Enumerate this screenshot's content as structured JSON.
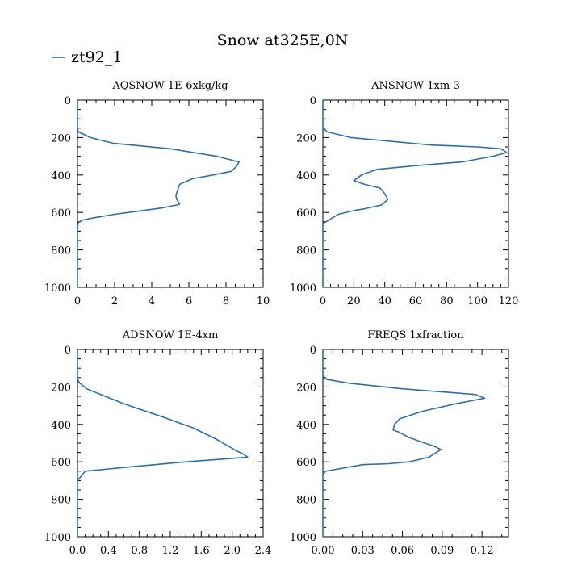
{
  "title": "Snow at325E,0N",
  "legend": {
    "label": "zt92_1",
    "color": "#2a6fb0"
  },
  "chart_data": [
    {
      "type": "line",
      "title": "AQSNOW  1E-6xkg/kg",
      "xlim": [
        0,
        10
      ],
      "ylim": [
        1000,
        0
      ],
      "xticks": [
        "0",
        "2",
        "4",
        "6",
        "8",
        "10"
      ],
      "yticks": [
        "0",
        "200",
        "400",
        "600",
        "800",
        "1000"
      ],
      "series": [
        {
          "name": "zt92_1",
          "x": [
            0,
            0,
            0.02,
            0.1,
            0.3,
            0.8,
            2.0,
            3.5,
            4.6,
            5.1,
            5.45,
            5.5,
            5.45,
            5.4,
            5.35,
            5.3,
            5.4,
            5.5,
            6.2,
            7.3,
            8.3,
            8.6,
            8.7,
            7.5,
            5.0,
            1.9,
            0.7,
            0.05,
            0,
            0
          ],
          "y": [
            1000,
            700,
            660,
            650,
            640,
            630,
            610,
            590,
            575,
            565,
            558,
            555,
            548,
            540,
            530,
            510,
            480,
            450,
            420,
            400,
            380,
            350,
            330,
            300,
            260,
            230,
            200,
            170,
            150,
            0
          ]
        }
      ]
    },
    {
      "type": "line",
      "title": "ANSNOW  1xm-3",
      "xlim": [
        0,
        120
      ],
      "ylim": [
        1000,
        0
      ],
      "xticks": [
        "0",
        "20",
        "40",
        "60",
        "80",
        "100",
        "120"
      ],
      "yticks": [
        "0",
        "200",
        "400",
        "600",
        "800",
        "1000"
      ],
      "series": [
        {
          "name": "zt92_1",
          "x": [
            0,
            0,
            2,
            10,
            20,
            27,
            38,
            42,
            40,
            37,
            27,
            20,
            25,
            35,
            60,
            90,
            110,
            119,
            115,
            100,
            70,
            18,
            3,
            0,
            0
          ],
          "y": [
            1000,
            660,
            650,
            610,
            590,
            580,
            560,
            530,
            500,
            470,
            450,
            430,
            400,
            370,
            350,
            330,
            300,
            280,
            260,
            250,
            240,
            200,
            170,
            150,
            0
          ]
        }
      ]
    },
    {
      "type": "line",
      "title": "ADSNOW  1E-4xm",
      "xlim": [
        0,
        2.4
      ],
      "ylim": [
        1000,
        0
      ],
      "xticks": [
        "0.0",
        "0.4",
        "0.8",
        "1.2",
        "1.6",
        "2.0",
        "2.4"
      ],
      "yticks": [
        "0",
        "200",
        "400",
        "600",
        "800",
        "1000"
      ],
      "series": [
        {
          "name": "zt92_1",
          "x": [
            0,
            0,
            0.02,
            0.1,
            0.6,
            1.4,
            2.2,
            2.15,
            2.05,
            1.8,
            1.5,
            1.1,
            0.6,
            0.3,
            0.12,
            0.03,
            0,
            0
          ],
          "y": [
            1000,
            700,
            690,
            650,
            630,
            600,
            575,
            560,
            540,
            480,
            420,
            360,
            290,
            240,
            210,
            180,
            160,
            0
          ]
        }
      ]
    },
    {
      "type": "line",
      "title": "FREQS  1xfraction",
      "xlim": [
        0,
        0.14
      ],
      "ylim": [
        1000,
        0
      ],
      "xticks": [
        "0.00",
        "0.03",
        "0.06",
        "0.09",
        "0.12"
      ],
      "yticks": [
        "0",
        "200",
        "400",
        "600",
        "800",
        "1000"
      ],
      "series": [
        {
          "name": "zt92_1",
          "x": [
            0,
            0,
            0.002,
            0.01,
            0.03,
            0.05,
            0.065,
            0.08,
            0.089,
            0.085,
            0.065,
            0.057,
            0.053,
            0.054,
            0.058,
            0.075,
            0.1,
            0.115,
            0.122,
            0.115,
            0.06,
            0.02,
            0.003,
            0,
            0
          ],
          "y": [
            1000,
            670,
            650,
            640,
            615,
            610,
            600,
            575,
            535,
            520,
            470,
            440,
            430,
            400,
            370,
            330,
            290,
            270,
            260,
            240,
            210,
            180,
            160,
            140,
            0
          ]
        }
      ]
    }
  ]
}
